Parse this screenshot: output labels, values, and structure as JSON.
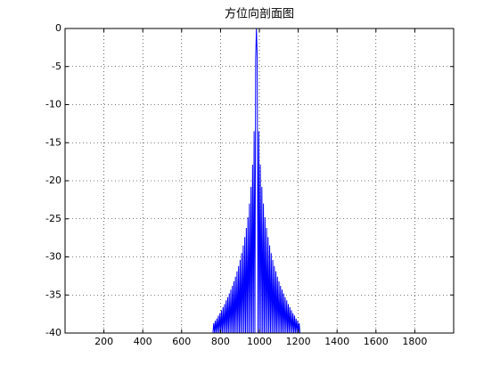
{
  "chart_data": {
    "type": "line",
    "title": "方位向剖面图",
    "x": [
      761,
      765,
      769,
      773,
      777,
      781,
      785,
      789,
      793,
      797,
      801,
      805,
      809,
      813,
      817,
      821,
      825,
      829,
      833,
      837,
      841,
      845,
      849,
      853,
      857,
      861,
      865,
      869,
      873,
      877,
      881,
      885,
      889,
      893,
      897,
      901,
      905,
      909,
      913,
      917,
      921,
      925,
      929,
      933,
      937,
      941,
      945,
      949,
      953,
      957,
      961,
      965,
      969,
      973,
      977,
      981,
      985,
      989,
      993,
      997,
      1001,
      1005,
      1009,
      1013,
      1017,
      1021,
      1025,
      1029,
      1033,
      1037,
      1041,
      1045,
      1049,
      1053,
      1057,
      1061,
      1065,
      1069,
      1073,
      1077,
      1081,
      1085,
      1089,
      1093,
      1097,
      1101,
      1105,
      1109,
      1113,
      1117,
      1121,
      1125,
      1129,
      1133,
      1137,
      1141,
      1145,
      1149,
      1153,
      1157,
      1161,
      1165,
      1169,
      1173,
      1177,
      1181,
      1185,
      1189,
      1193,
      1197,
      1201,
      1205,
      1209
    ],
    "values": [
      -40,
      -38.7,
      -40,
      -38.4,
      -40,
      -38.1,
      -40,
      -37.7,
      -40,
      -37.4,
      -40,
      -37.0,
      -40,
      -36.6,
      -40,
      -36.2,
      -40,
      -35.7,
      -40,
      -35.3,
      -40,
      -34.8,
      -40,
      -34.3,
      -40,
      -33.8,
      -40,
      -33.2,
      -40,
      -32.6,
      -40,
      -31.9,
      -40,
      -31.2,
      -40,
      -30.4,
      -40,
      -29.5,
      -40,
      -28.5,
      -40,
      -27.4,
      -40,
      -26.2,
      -40,
      -24.8,
      -40,
      -23.0,
      -40,
      -20.8,
      -40,
      -17.9,
      -40,
      -13.5,
      -40,
      -3.9,
      0,
      -3.9,
      -40,
      -13.5,
      -40,
      -17.9,
      -40,
      -20.8,
      -40,
      -23.0,
      -40,
      -24.8,
      -40,
      -26.2,
      -40,
      -27.4,
      -40,
      -28.5,
      -40,
      -29.5,
      -40,
      -30.4,
      -40,
      -31.2,
      -40,
      -31.9,
      -40,
      -32.6,
      -40,
      -33.2,
      -40,
      -33.8,
      -40,
      -34.3,
      -40,
      -34.8,
      -40,
      -35.3,
      -40,
      -35.7,
      -40,
      -36.2,
      -40,
      -36.6,
      -40,
      -37.0,
      -40,
      -37.4,
      -40,
      -37.7,
      -40,
      -38.1,
      -40,
      -38.4,
      -40,
      -38.7,
      -40
    ],
    "color": "#0000ff",
    "xlim": [
      0,
      2000
    ],
    "xticks": [
      200,
      400,
      600,
      800,
      1000,
      1200,
      1400,
      1600,
      1800
    ],
    "ylim": [
      -40,
      0
    ],
    "yticks": [
      0,
      -5,
      -10,
      -15,
      -20,
      -25,
      -30,
      -35,
      -40
    ],
    "grid": true
  }
}
